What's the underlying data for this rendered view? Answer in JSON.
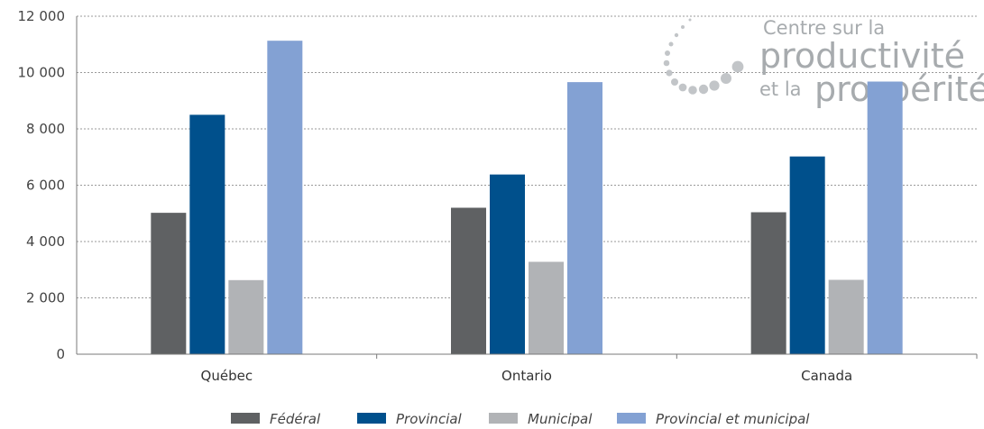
{
  "chart_data": {
    "type": "bar",
    "categories": [
      "Québec",
      "Ontario",
      "Canada"
    ],
    "series": [
      {
        "name": "Fédéral",
        "color": "#5f6163",
        "values": [
          5020,
          5200,
          5040
        ]
      },
      {
        "name": "Provincial",
        "color": "#00508c",
        "values": [
          8500,
          6380,
          7020
        ]
      },
      {
        "name": "Municipal",
        "color": "#b1b3b6",
        "values": [
          2630,
          3280,
          2640
        ]
      },
      {
        "name": "Provincial et municipal",
        "color": "#83a1d3",
        "values": [
          11130,
          9660,
          9680
        ]
      }
    ],
    "ylim": [
      0,
      12000
    ],
    "yticks": [
      0,
      2000,
      4000,
      6000,
      8000,
      10000,
      12000
    ],
    "ytick_labels": [
      "0",
      "2 000",
      "4 000",
      "6 000",
      "8 000",
      "10 000",
      "12 000"
    ],
    "grid": true,
    "legend_position": "bottom"
  },
  "logo": {
    "line1": "Centre sur la",
    "line2": "productivité",
    "line3a": "et la",
    "line3b": "prospérité"
  }
}
